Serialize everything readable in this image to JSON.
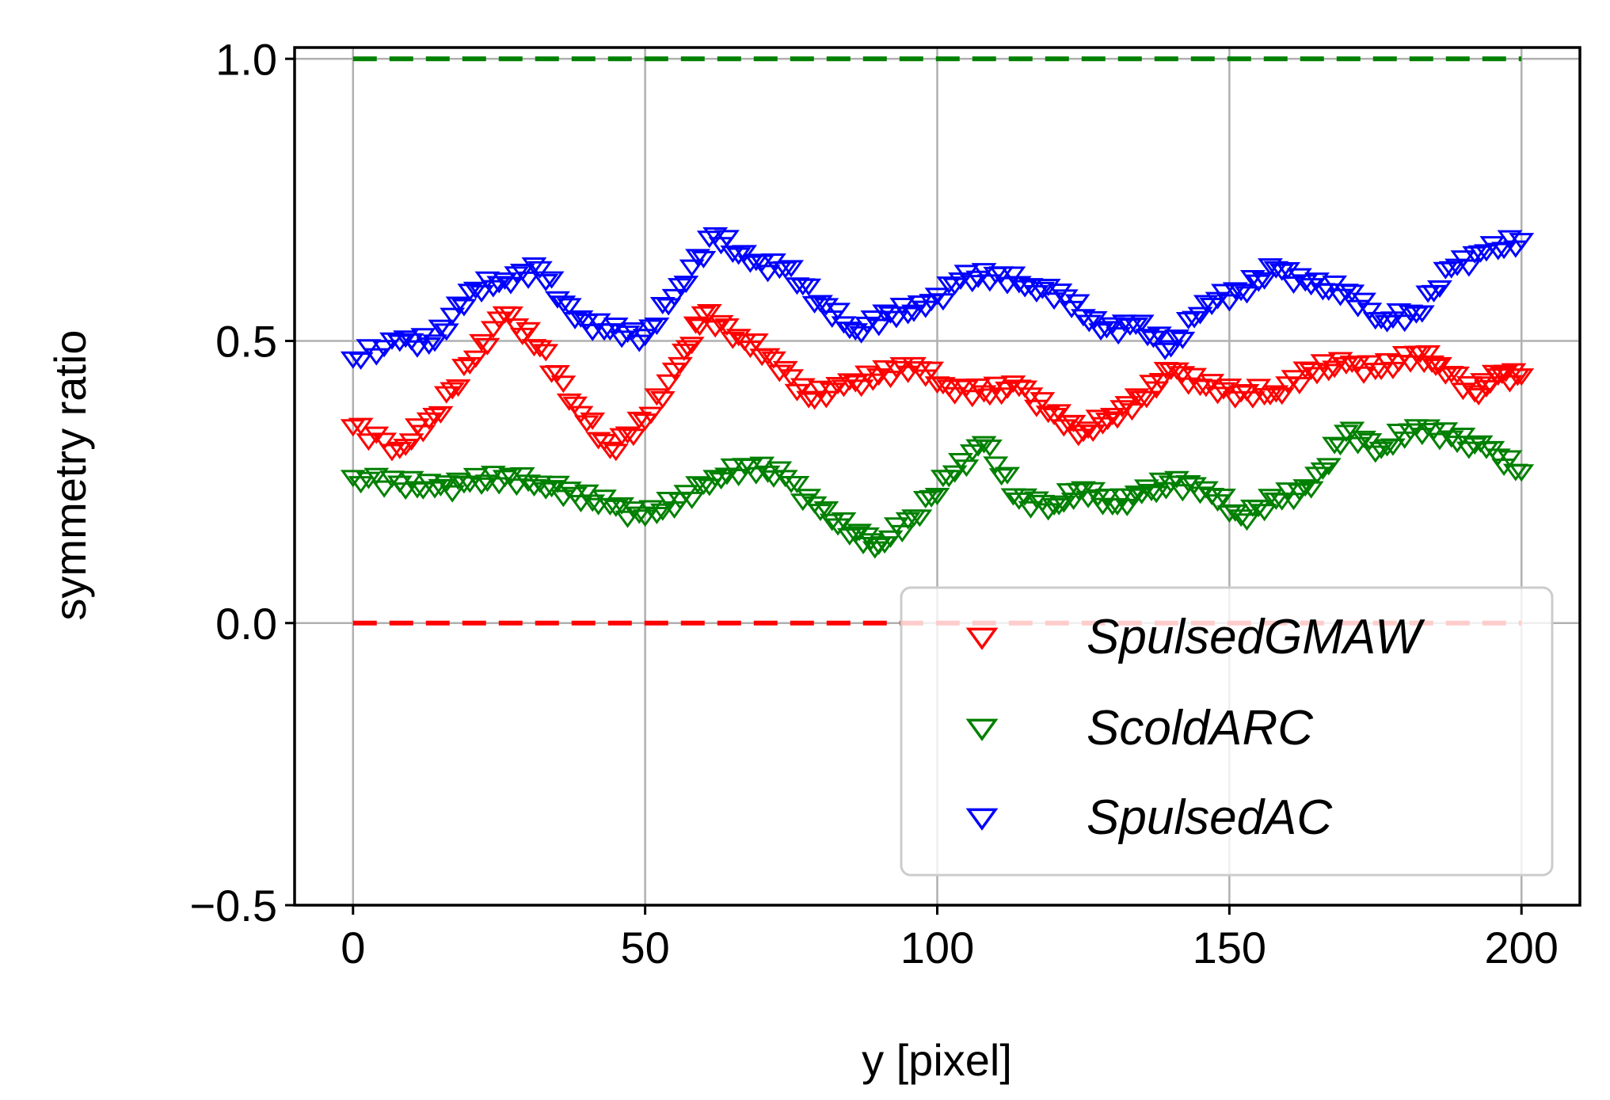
{
  "chart_data": {
    "type": "scatter",
    "xlabel": "y [pixel]",
    "ylabel": "symmetry ratio",
    "xlim": [
      -10,
      210
    ],
    "ylim": [
      -0.5,
      1.02
    ],
    "xticks": [
      "0",
      "50",
      "100",
      "150",
      "200"
    ],
    "yticks": [
      "−0.5",
      "0.0",
      "0.5",
      "1.0"
    ],
    "grid": true,
    "legend_position": "lower-right",
    "reference_lines": [
      {
        "y": 1.0,
        "color": "#008000",
        "style": "dashed"
      },
      {
        "y": 0.0,
        "color": "#ff0000",
        "style": "dashed"
      }
    ],
    "series": [
      {
        "name": "SpulsedGMAW",
        "color": "#ff0000",
        "marker": "triangle-down-open",
        "x": [
          0,
          8,
          14,
          20,
          26,
          32,
          38,
          44,
          50,
          56,
          60,
          66,
          72,
          78,
          84,
          90,
          96,
          102,
          108,
          114,
          120,
          125,
          130,
          135,
          140,
          146,
          152,
          158,
          164,
          170,
          176,
          182,
          186,
          192,
          196,
          200
        ],
        "values": [
          0.35,
          0.31,
          0.37,
          0.46,
          0.55,
          0.49,
          0.39,
          0.31,
          0.36,
          0.46,
          0.55,
          0.51,
          0.47,
          0.4,
          0.42,
          0.44,
          0.46,
          0.42,
          0.41,
          0.42,
          0.37,
          0.34,
          0.37,
          0.4,
          0.45,
          0.42,
          0.41,
          0.41,
          0.45,
          0.46,
          0.45,
          0.48,
          0.46,
          0.41,
          0.44,
          0.44
        ]
      },
      {
        "name": "ScoldARC",
        "color": "#008000",
        "marker": "triangle-down-open",
        "x": [
          0,
          8,
          14,
          20,
          26,
          32,
          38,
          44,
          50,
          56,
          62,
          68,
          74,
          80,
          86,
          90,
          96,
          102,
          108,
          114,
          120,
          125,
          130,
          135,
          140,
          146,
          152,
          158,
          164,
          170,
          176,
          182,
          188,
          194,
          200
        ],
        "values": [
          0.26,
          0.25,
          0.24,
          0.25,
          0.26,
          0.25,
          0.23,
          0.21,
          0.19,
          0.22,
          0.26,
          0.28,
          0.26,
          0.2,
          0.16,
          0.14,
          0.19,
          0.26,
          0.32,
          0.22,
          0.21,
          0.24,
          0.21,
          0.23,
          0.25,
          0.24,
          0.19,
          0.22,
          0.24,
          0.34,
          0.31,
          0.35,
          0.33,
          0.31,
          0.27
        ]
      },
      {
        "name": "SpulsedAC",
        "color": "#0000ff",
        "marker": "triangle-down-open",
        "x": [
          0,
          8,
          14,
          20,
          26,
          32,
          38,
          44,
          50,
          56,
          62,
          68,
          74,
          80,
          86,
          92,
          98,
          104,
          110,
          116,
          122,
          128,
          134,
          140,
          146,
          152,
          158,
          164,
          170,
          176,
          182,
          188,
          194,
          200
        ],
        "values": [
          0.47,
          0.5,
          0.5,
          0.59,
          0.61,
          0.63,
          0.54,
          0.52,
          0.51,
          0.6,
          0.69,
          0.64,
          0.63,
          0.57,
          0.52,
          0.55,
          0.56,
          0.61,
          0.62,
          0.6,
          0.58,
          0.52,
          0.53,
          0.49,
          0.57,
          0.59,
          0.63,
          0.6,
          0.59,
          0.54,
          0.55,
          0.63,
          0.66,
          0.68
        ]
      }
    ]
  }
}
